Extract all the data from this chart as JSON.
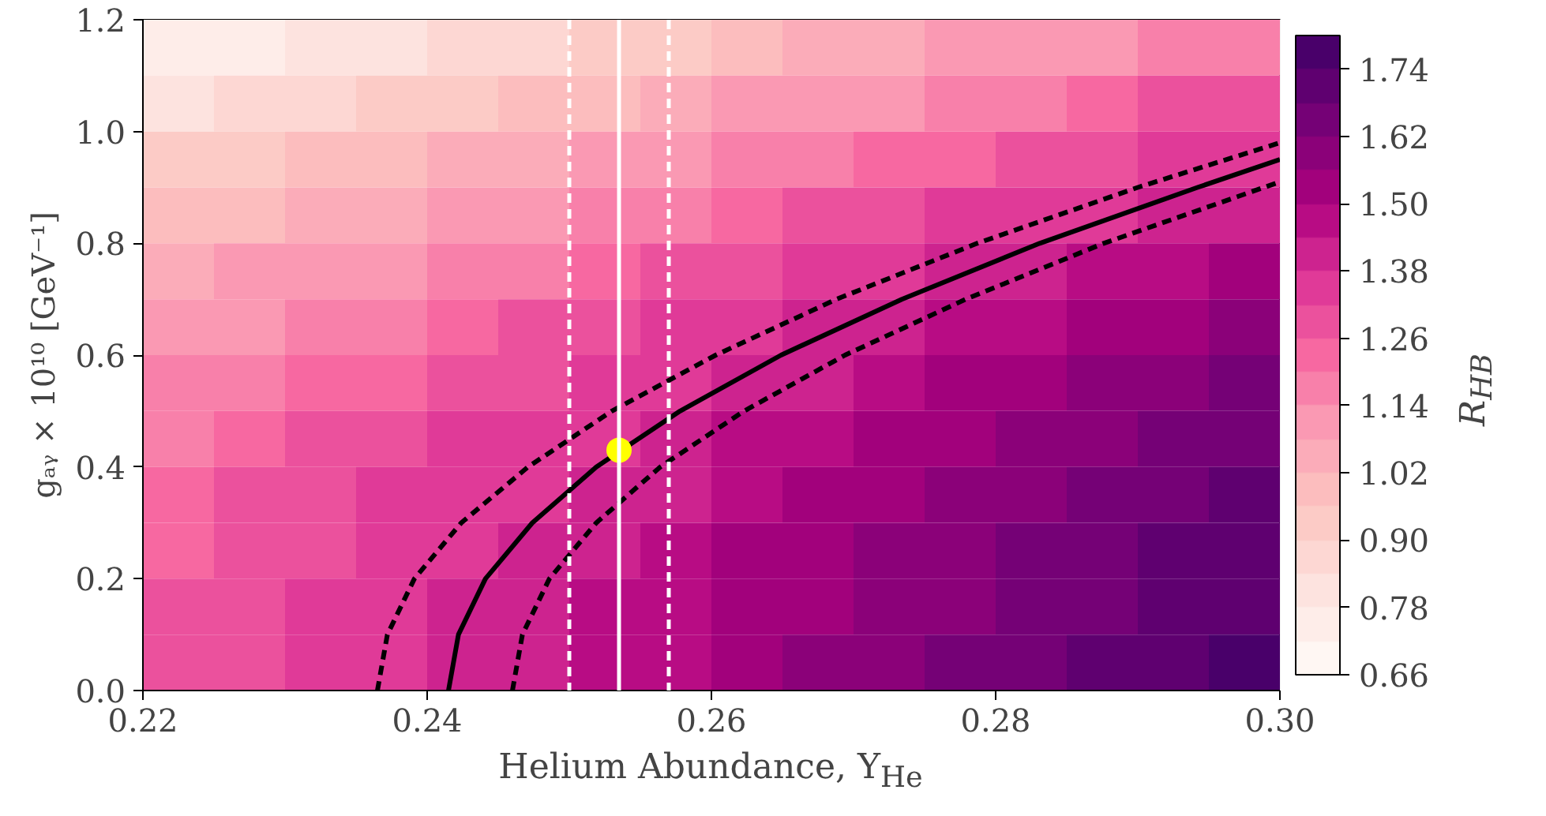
{
  "chart_data": {
    "type": "heatmap",
    "xlabel": "Helium Abundance, Y$_{He}$",
    "ylabel": "gₐᵧ × 10¹⁰ [GeV⁻¹]",
    "clabel": "R$_{HB}$",
    "xlim": [
      0.22,
      0.3
    ],
    "xticks": [
      {
        "value": 0.22,
        "label": "0.22"
      },
      {
        "value": 0.24,
        "label": "0.24"
      },
      {
        "value": 0.26,
        "label": "0.26"
      },
      {
        "value": 0.28,
        "label": "0.28"
      },
      {
        "value": 0.3,
        "label": "0.30"
      }
    ],
    "ylim": [
      0.0,
      1.2
    ],
    "yticks": [
      {
        "value": 0,
        "label": "0.0"
      },
      {
        "value": 0.2,
        "label": "0.2"
      },
      {
        "value": 0.4,
        "label": "0.4"
      },
      {
        "value": 0.6,
        "label": "0.6"
      },
      {
        "value": 0.8,
        "label": "0.8"
      },
      {
        "value": 1.0,
        "label": "1.0"
      },
      {
        "value": 1.2,
        "label": "1.2"
      }
    ],
    "clim": [
      0.66,
      1.8
    ],
    "cticks": [
      {
        "value": 0.66,
        "label": "0.66"
      },
      {
        "value": 0.78,
        "label": "0.78"
      },
      {
        "value": 0.9,
        "label": "0.90"
      },
      {
        "value": 1.02,
        "label": "1.02"
      },
      {
        "value": 1.14,
        "label": "1.14"
      },
      {
        "value": 1.26,
        "label": "1.26"
      },
      {
        "value": 1.38,
        "label": "1.38"
      },
      {
        "value": 1.5,
        "label": "1.50"
      },
      {
        "value": 1.62,
        "label": "1.62"
      },
      {
        "value": 1.74,
        "label": "1.74"
      }
    ],
    "cells": [
      [
        0.74,
        0.77,
        0.8,
        0.83,
        0.86,
        0.89,
        0.92,
        0.95,
        0.99,
        1.02,
        1.05,
        1.08,
        1.11,
        1.14,
        1.17,
        1.2
      ],
      [
        0.83,
        0.86,
        0.89,
        0.92,
        0.95,
        0.98,
        1.01,
        1.04,
        1.08,
        1.11,
        1.14,
        1.17,
        1.2,
        1.23,
        1.26,
        1.29
      ],
      [
        0.91,
        0.94,
        0.97,
        1.0,
        1.03,
        1.06,
        1.09,
        1.12,
        1.16,
        1.19,
        1.22,
        1.25,
        1.28,
        1.31,
        1.34,
        1.37
      ],
      [
        0.98,
        1.01,
        1.04,
        1.07,
        1.1,
        1.13,
        1.16,
        1.19,
        1.23,
        1.26,
        1.29,
        1.32,
        1.35,
        1.38,
        1.41,
        1.44
      ],
      [
        1.05,
        1.08,
        1.11,
        1.14,
        1.17,
        1.2,
        1.23,
        1.26,
        1.3,
        1.33,
        1.36,
        1.39,
        1.42,
        1.45,
        1.48,
        1.51
      ],
      [
        1.11,
        1.14,
        1.17,
        1.2,
        1.23,
        1.26,
        1.29,
        1.32,
        1.36,
        1.39,
        1.42,
        1.45,
        1.48,
        1.51,
        1.54,
        1.57
      ],
      [
        1.16,
        1.19,
        1.22,
        1.25,
        1.28,
        1.31,
        1.34,
        1.37,
        1.41,
        1.44,
        1.47,
        1.5,
        1.53,
        1.56,
        1.59,
        1.62
      ],
      [
        1.2,
        1.23,
        1.26,
        1.29,
        1.32,
        1.35,
        1.38,
        1.41,
        1.45,
        1.48,
        1.51,
        1.54,
        1.57,
        1.6,
        1.63,
        1.66
      ],
      [
        1.23,
        1.26,
        1.29,
        1.32,
        1.35,
        1.38,
        1.41,
        1.44,
        1.48,
        1.51,
        1.54,
        1.57,
        1.6,
        1.63,
        1.66,
        1.69
      ],
      [
        1.25,
        1.28,
        1.31,
        1.34,
        1.37,
        1.4,
        1.43,
        1.46,
        1.5,
        1.53,
        1.56,
        1.59,
        1.62,
        1.65,
        1.68,
        1.71
      ],
      [
        1.27,
        1.3,
        1.33,
        1.36,
        1.39,
        1.42,
        1.45,
        1.48,
        1.52,
        1.55,
        1.58,
        1.61,
        1.64,
        1.67,
        1.7,
        1.73
      ],
      [
        1.28,
        1.31,
        1.34,
        1.37,
        1.4,
        1.43,
        1.46,
        1.49,
        1.53,
        1.56,
        1.59,
        1.62,
        1.65,
        1.68,
        1.71,
        1.74
      ]
    ],
    "series": [
      {
        "type": "line",
        "color": "#000000",
        "line_style": "solid",
        "x": [
          0.2415,
          0.2422,
          0.2441,
          0.2474,
          0.2519,
          0.2578,
          0.2649,
          0.2734,
          0.2831,
          0.2942,
          0.3
        ],
        "values": [
          0,
          0.1,
          0.2,
          0.3,
          0.4,
          0.5,
          0.6,
          0.7,
          0.8,
          0.9,
          0.95
        ]
      },
      {
        "type": "line",
        "color": "#000000",
        "line_style": "dashed",
        "x": [
          0.2365,
          0.2372,
          0.2391,
          0.2424,
          0.2471,
          0.253,
          0.2603,
          0.2688,
          0.2787,
          0.29,
          0.3
        ],
        "values": [
          0,
          0.1,
          0.2,
          0.3,
          0.4,
          0.5,
          0.6,
          0.7,
          0.8,
          0.9,
          0.98
        ]
      },
      {
        "type": "line",
        "color": "#000000",
        "line_style": "dashed",
        "x": [
          0.246,
          0.2467,
          0.2486,
          0.2519,
          0.2564,
          0.2623,
          0.2694,
          0.2779,
          0.2876,
          0.3
        ],
        "values": [
          0,
          0.1,
          0.2,
          0.3,
          0.4,
          0.5,
          0.6,
          0.7,
          0.8,
          0.91
        ]
      },
      {
        "type": "scatter",
        "color": "#ffff00",
        "marker": "circle",
        "x": [
          0.2535
        ],
        "values": [
          0.43
        ]
      }
    ],
    "ref_lines": [
      {
        "axis": "x",
        "value": 0.25,
        "color": "#ffffff",
        "line_style": "dashed"
      },
      {
        "axis": "x",
        "value": 0.2535,
        "color": "#ffffff",
        "line_style": "solid"
      },
      {
        "axis": "x",
        "value": 0.257,
        "color": "#ffffff",
        "line_style": "dashed"
      }
    ],
    "grid": false
  }
}
